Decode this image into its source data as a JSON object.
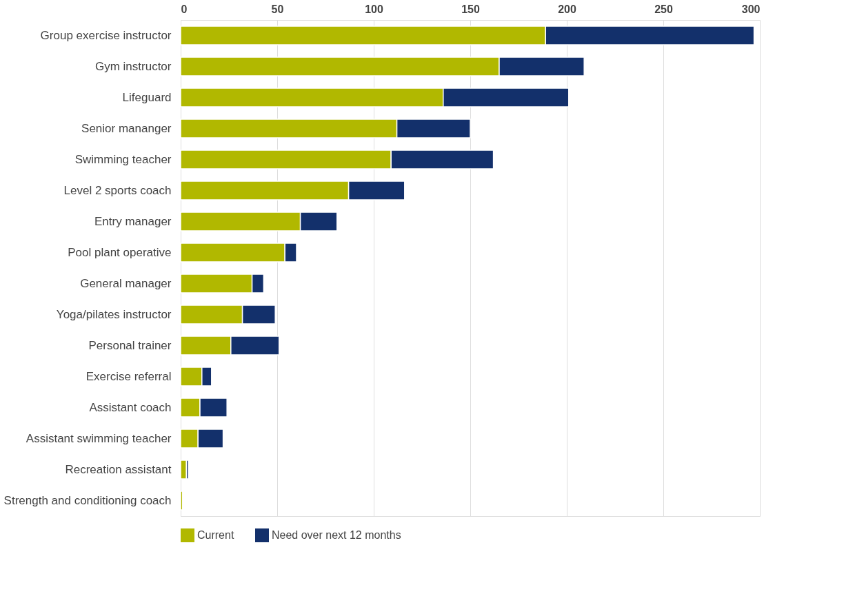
{
  "chart_data": {
    "type": "bar",
    "orientation": "horizontal",
    "stacked": true,
    "categories": [
      "Group exercise instructor",
      "Gym instructor",
      "Lifeguard",
      "Senior mananger",
      "Swimming teacher",
      "Level 2 sports coach",
      "Entry manager",
      "Pool plant operative",
      "General manager",
      "Yoga/pilates instructor",
      "Personal trainer",
      "Exercise referral",
      "Assistant coach",
      "Assistant swimming teacher",
      "Recreation assistant",
      "Strength and conditioning coach"
    ],
    "series": [
      {
        "name": "Current",
        "color": "#b1b800",
        "values": [
          189,
          165,
          136,
          112,
          109,
          87,
          62,
          54,
          37,
          32,
          26,
          11,
          10,
          9,
          3,
          1
        ]
      },
      {
        "name": "Need over next 12 months",
        "color": "#13306b",
        "values": [
          108,
          44,
          65,
          38,
          53,
          29,
          19,
          6,
          6,
          17,
          25,
          5,
          14,
          13,
          1,
          0
        ]
      }
    ],
    "xlim": [
      0,
      300
    ],
    "xticks": [
      0,
      50,
      100,
      150,
      200,
      250,
      300
    ],
    "grid": "x",
    "legend": "bottom"
  }
}
